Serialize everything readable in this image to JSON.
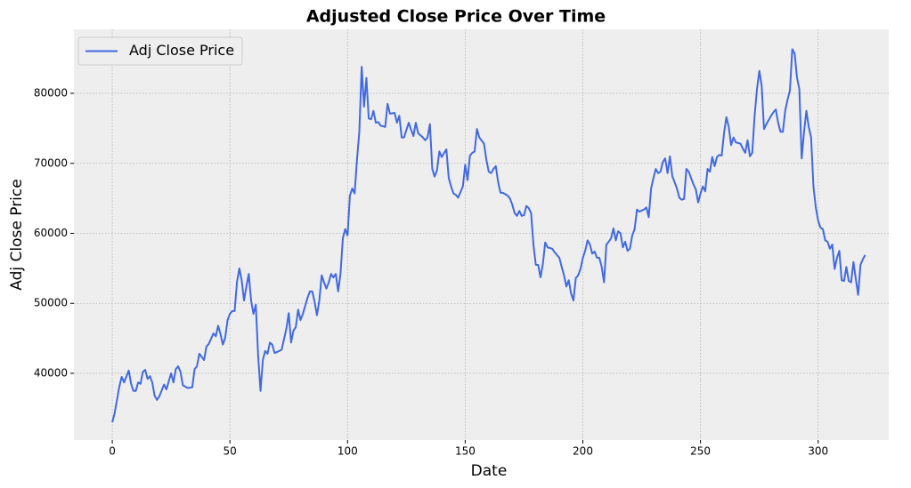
{
  "chart_data": {
    "type": "line",
    "title": "Adjusted Close Price Over Time",
    "x_label": "Date",
    "y_label": "Adj Close Price",
    "x": [
      0,
      1,
      3,
      4,
      5,
      7,
      8,
      9,
      10,
      11,
      12,
      13,
      14,
      15,
      16,
      17,
      18,
      19,
      20,
      22,
      23,
      25,
      26,
      27,
      28,
      29,
      30,
      32,
      34,
      35,
      36,
      37,
      39,
      40,
      41,
      43,
      44,
      45,
      46,
      47,
      48,
      49,
      50,
      51,
      52,
      53,
      54,
      55,
      56,
      57,
      58,
      59,
      60,
      61,
      62,
      63,
      64,
      65,
      66,
      67,
      68,
      69,
      71,
      72,
      74,
      75,
      76,
      77,
      78,
      79,
      80,
      81,
      83,
      84,
      85,
      86,
      87,
      88,
      89,
      90,
      91,
      92,
      93,
      94,
      95,
      96,
      97,
      98,
      99,
      100,
      101,
      102,
      103,
      104,
      105,
      106,
      107,
      108,
      109,
      110,
      111,
      112,
      113,
      114,
      116,
      117,
      118,
      120,
      121,
      122,
      123,
      124,
      126,
      127,
      128,
      129,
      130,
      132,
      133,
      134,
      135,
      136,
      137,
      138,
      139,
      140,
      142,
      143,
      144,
      145,
      146,
      147,
      148,
      149,
      150,
      151,
      152,
      153,
      154,
      155,
      156,
      158,
      159,
      160,
      161,
      162,
      163,
      164,
      165,
      166,
      168,
      169,
      170,
      171,
      172,
      173,
      174,
      175,
      176,
      177,
      178,
      179,
      180,
      181,
      182,
      183,
      184,
      185,
      187,
      188,
      190,
      191,
      192,
      193,
      194,
      195,
      196,
      197,
      198,
      199,
      200,
      201,
      202,
      203,
      204,
      205,
      206,
      207,
      208,
      209,
      210,
      211,
      212,
      213,
      214,
      215,
      216,
      217,
      218,
      219,
      220,
      221,
      222,
      223,
      224,
      226,
      227,
      228,
      229,
      230,
      231,
      232,
      233,
      234,
      235,
      236,
      237,
      238,
      239,
      240,
      241,
      242,
      243,
      244,
      245,
      246,
      247,
      248,
      249,
      250,
      251,
      252,
      253,
      254,
      255,
      256,
      257,
      258,
      259,
      260,
      261,
      262,
      263,
      264,
      265,
      267,
      268,
      269,
      270,
      271,
      272,
      273,
      274,
      275,
      276,
      277,
      278,
      280,
      281,
      282,
      283,
      284,
      285,
      286,
      287,
      288,
      289,
      290,
      291,
      292,
      293,
      294,
      295,
      296,
      297,
      298,
      299,
      300,
      301,
      302,
      303,
      304,
      305,
      306,
      307,
      308,
      309,
      310,
      311,
      312,
      313,
      314,
      315,
      316,
      317,
      318,
      319,
      320
    ],
    "series": [
      {
        "name": "Adj Close Price",
        "color": "#4169e1",
        "values": [
          33000,
          34300,
          38100,
          39500,
          38700,
          40400,
          38500,
          37500,
          37500,
          38700,
          38500,
          40200,
          40500,
          39200,
          39600,
          38700,
          36800,
          36200,
          36700,
          38400,
          37700,
          40000,
          38700,
          40600,
          41000,
          40200,
          38300,
          37900,
          38000,
          40600,
          41000,
          42800,
          41900,
          43800,
          44200,
          45700,
          45300,
          46800,
          45600,
          44100,
          45100,
          47600,
          48500,
          48900,
          48900,
          53000,
          55000,
          53300,
          50400,
          52400,
          54200,
          50400,
          48500,
          49800,
          42500,
          37500,
          41900,
          43200,
          42800,
          44400,
          44100,
          42900,
          43200,
          43400,
          46400,
          48600,
          44400,
          46100,
          46600,
          49100,
          47600,
          48500,
          50800,
          51700,
          51700,
          50200,
          48300,
          50400,
          54000,
          53000,
          52100,
          53000,
          54200,
          53700,
          54200,
          51700,
          54200,
          59300,
          60600,
          59700,
          65400,
          66400,
          65700,
          70500,
          74500,
          83800,
          78100,
          82200,
          76400,
          76300,
          77500,
          75800,
          75900,
          75400,
          75200,
          78500,
          77100,
          77200,
          75800,
          76800,
          73700,
          73700,
          75800,
          74800,
          73900,
          75800,
          74300,
          73700,
          73300,
          73700,
          75600,
          69200,
          68100,
          69000,
          71700,
          70900,
          72000,
          67900,
          66700,
          65700,
          65500,
          65100,
          65900,
          66700,
          69800,
          67600,
          71100,
          71500,
          71700,
          74900,
          73700,
          72800,
          70500,
          68800,
          68600,
          69200,
          69600,
          67300,
          65800,
          65800,
          65400,
          65000,
          64100,
          62900,
          62500,
          63200,
          62500,
          62600,
          63900,
          63600,
          62900,
          58400,
          55500,
          55500,
          53700,
          55600,
          58700,
          58000,
          57800,
          57300,
          56500,
          55200,
          54000,
          52400,
          53300,
          51400,
          50400,
          53600,
          54000,
          54900,
          56500,
          57500,
          59000,
          58400,
          57100,
          57400,
          56500,
          56500,
          55200,
          53000,
          58400,
          58800,
          59300,
          60700,
          59000,
          60300,
          60000,
          58000,
          58800,
          57500,
          57800,
          59700,
          60600,
          63400,
          63100,
          63400,
          63700,
          62300,
          66400,
          67900,
          69200,
          68600,
          68800,
          70200,
          70700,
          68600,
          71000,
          68200,
          67300,
          66400,
          65100,
          64800,
          64900,
          69200,
          68800,
          67900,
          67000,
          66300,
          64400,
          65700,
          66700,
          66000,
          69200,
          68800,
          70900,
          69600,
          70900,
          71200,
          71100,
          74300,
          76600,
          75200,
          72600,
          73700,
          73000,
          72800,
          72100,
          71500,
          73300,
          71000,
          71500,
          76800,
          80600,
          83200,
          81100,
          74900,
          75600,
          76800,
          77300,
          77700,
          75800,
          74500,
          74500,
          77500,
          79100,
          80400,
          86300,
          85700,
          82300,
          80600,
          70700,
          74500,
          77500,
          75200,
          73700,
          66700,
          63700,
          61800,
          60800,
          60600,
          59000,
          58800,
          57800,
          58400,
          54900,
          56500,
          57500,
          53300,
          53200,
          55200,
          53200,
          53000,
          55900,
          53500,
          51200,
          55500,
          56300,
          56900
        ]
      }
    ],
    "xlim": [
      -16.3,
      330
    ],
    "ylim": [
      30476,
      89143
    ],
    "xticks": [
      0,
      50,
      100,
      150,
      200,
      250,
      300
    ],
    "yticks": [
      40000,
      50000,
      60000,
      70000,
      80000
    ],
    "grid": true,
    "legend": "upper left"
  }
}
